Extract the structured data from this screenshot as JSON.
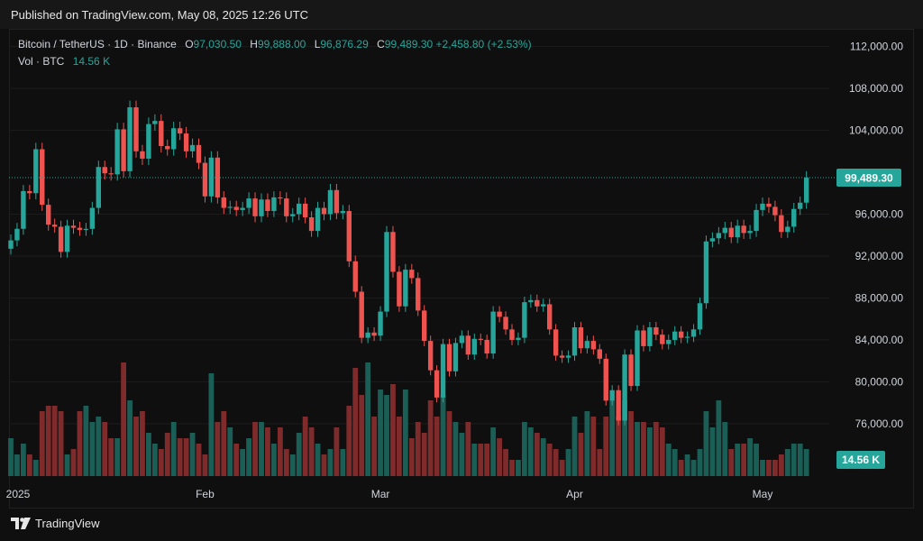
{
  "header": {
    "published": "Published on TradingView.com, May 08, 2025 12:26 UTC"
  },
  "legend": {
    "symbol": "Bitcoin / TetherUS · 1D · Binance",
    "o_label": "O",
    "o_value": "97,030.50",
    "h_label": "H",
    "h_value": "99,888.00",
    "l_label": "L",
    "l_value": "96,876.29",
    "c_label": "C",
    "c_value": "99,489.30",
    "change": "+2,458.80 (+2.53%)",
    "vol_label": "Vol · BTC",
    "vol_value": "14.56 K"
  },
  "footer": {
    "brand": "TradingView"
  },
  "colors": {
    "up": "#26a69a",
    "down": "#ef5350",
    "vol_up": "#1b5e56",
    "vol_down": "#7f2b2b",
    "price_badge": "#26a69a"
  },
  "chart_data": {
    "type": "candlestick",
    "title": "Bitcoin / TetherUS · 1D · Binance",
    "ylim": [
      71000,
      113000
    ],
    "y_tick_values": [
      76000,
      80000,
      84000,
      88000,
      92000,
      96000,
      104000,
      108000,
      112000
    ],
    "y_tick_labels": [
      "76,000.00",
      "80,000.00",
      "84,000.00",
      "88,000.00",
      "92,000.00",
      "96,000.00",
      "104,000.00",
      "108,000.00",
      "112,000.00"
    ],
    "x_labels": [
      "2025",
      "Feb",
      "Mar",
      "Apr",
      "May"
    ],
    "x_label_index": [
      0,
      31,
      59,
      90,
      120
    ],
    "last_price": 99489.3,
    "last_price_label": "99,489.30",
    "current_volume_label": "14.56 K",
    "volume_scale_max": 20,
    "close": [
      93500,
      94600,
      98200,
      98000,
      102200,
      96900,
      95000,
      94800,
      92400,
      94900,
      94700,
      94500,
      94600,
      96600,
      100500,
      99900,
      99800,
      104100,
      100100,
      106200,
      102000,
      101300,
      104600,
      104900,
      102500,
      102200,
      104200,
      103700,
      102000,
      102600,
      100900,
      97700,
      101400,
      97600,
      96600,
      96700,
      96400,
      96600,
      97500,
      95800,
      97400,
      96300,
      97600,
      97500,
      95800,
      96000,
      97000,
      95700,
      94400,
      96600,
      96000,
      98300,
      96100,
      96300,
      91500,
      88600,
      84200,
      84700,
      84400,
      86700,
      94300,
      90500,
      87200,
      90700,
      89900,
      86800,
      83900,
      81100,
      78500,
      83600,
      81000,
      83700,
      84400,
      82600,
      84100,
      84000,
      82700,
      86700,
      86200,
      85000,
      84000,
      84200,
      87600,
      87800,
      87200,
      87400,
      85000,
      82500,
      82300,
      82500,
      85200,
      83200,
      83900,
      83100,
      82200,
      78200,
      79200,
      76300,
      82600,
      79600,
      84900,
      83400,
      85200,
      84500,
      83600,
      84000,
      84800,
      84200,
      84300,
      85000,
      87500,
      93400,
      93700,
      94200,
      94700,
      93800,
      94900,
      94200,
      94400,
      96400,
      97000,
      96700,
      95900,
      94300,
      94800,
      96500,
      97100,
      99500
    ],
    "volume": [
      7,
      4,
      6,
      4,
      3,
      12,
      13,
      13,
      12,
      4,
      5,
      12,
      13,
      10,
      11,
      10,
      7,
      7,
      21,
      14,
      11,
      12,
      8,
      6,
      5,
      8,
      10,
      7,
      7,
      8,
      6,
      4,
      19,
      10,
      12,
      9,
      6,
      5,
      7,
      10,
      10,
      9,
      6,
      9,
      5,
      4,
      8,
      11,
      9,
      6,
      4,
      5,
      9,
      5,
      13,
      20,
      15,
      21,
      11,
      16,
      15,
      17,
      11,
      16,
      7,
      10,
      8,
      14,
      11,
      15,
      12,
      10,
      8,
      10,
      6,
      6,
      6,
      9,
      7,
      5,
      3,
      3,
      10,
      9,
      8,
      7,
      6,
      5,
      3,
      5,
      11,
      8,
      12,
      11,
      5,
      11,
      14,
      11,
      14,
      12,
      10,
      10,
      9,
      10,
      9,
      6,
      5,
      3,
      4,
      3,
      5,
      12,
      9,
      14,
      10,
      5,
      6,
      6,
      7,
      6,
      3,
      3,
      3,
      4,
      5,
      6,
      6,
      5
    ]
  }
}
